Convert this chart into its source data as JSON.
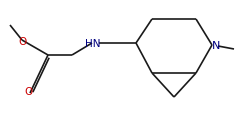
{
  "bg_color": "#ffffff",
  "line_color": "#1a1a1a",
  "atom_colors": {
    "O": "#cc0000",
    "N": "#000080",
    "C": "#1a1a1a"
  },
  "figsize": [
    2.51,
    1.16
  ],
  "dpi": 100,
  "lw": 1.2
}
